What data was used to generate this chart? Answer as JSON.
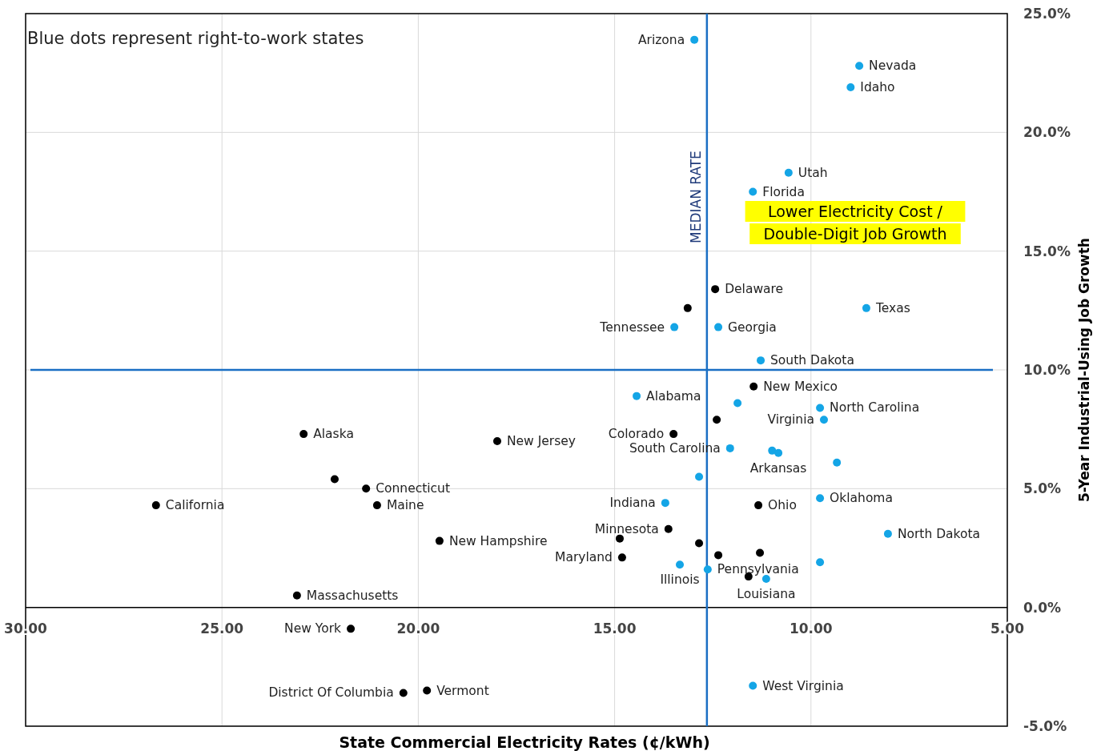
{
  "chart_data": {
    "type": "scatter",
    "xlabel": "State Commercial Electricity Rates (¢/kWh)",
    "ylabel": "5-Year Industrial-Using Job Growth",
    "xlim": [
      30,
      5
    ],
    "xticks": [
      {
        "value": 30,
        "label": "30.00"
      },
      {
        "value": 25,
        "label": "25.00"
      },
      {
        "value": 20,
        "label": "20.00"
      },
      {
        "value": 15,
        "label": "15.00"
      },
      {
        "value": 10,
        "label": "10.00"
      },
      {
        "value": 5,
        "label": "5.00"
      }
    ],
    "ylim": [
      -5,
      25
    ],
    "yticks": [
      {
        "value": -5,
        "label": "-5.0%"
      },
      {
        "value": 0,
        "label": "0.0%"
      },
      {
        "value": 5,
        "label": "5.0%"
      },
      {
        "value": 10,
        "label": "10.0%"
      },
      {
        "value": 15,
        "label": "15.0%"
      },
      {
        "value": 20,
        "label": "20.0%"
      },
      {
        "value": 25,
        "label": "25.0%"
      }
    ],
    "grid": true,
    "marker": "circle",
    "series": [
      {
        "color": "#14a5e6",
        "x": [
          12.97,
          8.77,
          8.99,
          10.57,
          11.48,
          8.59,
          13.48,
          12.36,
          11.28,
          14.44,
          11.87,
          9.77,
          9.67,
          12.06,
          10.99,
          10.83,
          9.34,
          12.85,
          13.71,
          9.77,
          8.04,
          13.34,
          9.77,
          12.63,
          11.14,
          11.48
        ],
        "values": [
          23.9,
          22.8,
          21.9,
          18.3,
          17.5,
          12.6,
          11.8,
          11.8,
          10.4,
          8.9,
          8.6,
          8.4,
          7.9,
          6.7,
          6.6,
          6.5,
          6.1,
          5.5,
          4.4,
          4.6,
          3.1,
          1.8,
          1.9,
          1.6,
          1.2,
          -3.3
        ]
      },
      {
        "color": "#000000",
        "x": [
          12.44,
          13.14,
          11.46,
          12.4,
          22.92,
          13.5,
          17.99,
          22.13,
          21.33,
          26.68,
          21.05,
          11.34,
          13.63,
          14.87,
          19.46,
          12.85,
          12.36,
          11.3,
          14.81,
          11.59,
          23.09,
          21.72,
          19.78,
          20.38
        ],
        "values": [
          13.4,
          12.6,
          9.3,
          7.9,
          7.3,
          7.3,
          7.0,
          5.4,
          5.0,
          4.3,
          4.3,
          4.3,
          3.3,
          2.9,
          2.8,
          2.7,
          2.2,
          2.3,
          2.1,
          1.3,
          0.5,
          -0.9,
          -3.5,
          -3.6
        ]
      }
    ],
    "ref_lines": [
      {
        "axis": "x",
        "value": 12.65,
        "label": "MEDIAN RATE",
        "color": "#1a6fc4"
      },
      {
        "axis": "y",
        "value": 10,
        "color": "#1a6fc4"
      }
    ],
    "annotations": [
      "Blue dots represent right-to-work states",
      "Lower Electricity Cost /\nDouble-Digit Job Growth",
      {
        "text": "Arizona",
        "x": 12.97,
        "y": 23.9
      },
      {
        "text": "Nevada",
        "x": 8.77,
        "y": 22.8
      },
      {
        "text": "Idaho",
        "x": 8.99,
        "y": 21.9
      },
      {
        "text": "Utah",
        "x": 10.57,
        "y": 18.3
      },
      {
        "text": "Florida",
        "x": 11.48,
        "y": 17.5
      },
      {
        "text": "Delaware",
        "x": 12.44,
        "y": 13.4
      },
      {
        "text": "Texas",
        "x": 8.59,
        "y": 12.6
      },
      {
        "text": "Georgia",
        "x": 12.36,
        "y": 11.8
      },
      {
        "text": "Tennessee",
        "x": 13.48,
        "y": 11.8
      },
      {
        "text": "South Dakota",
        "x": 11.28,
        "y": 10.4
      },
      {
        "text": "New Mexico",
        "x": 11.46,
        "y": 9.3
      },
      {
        "text": "Alabama",
        "x": 14.44,
        "y": 8.9
      },
      {
        "text": "North Carolina",
        "x": 9.77,
        "y": 8.4
      },
      {
        "text": "Virginia",
        "x": 9.67,
        "y": 7.9
      },
      {
        "text": "Alaska",
        "x": 22.92,
        "y": 7.3
      },
      {
        "text": "Colorado",
        "x": 13.5,
        "y": 7.3
      },
      {
        "text": "New Jersey",
        "x": 17.99,
        "y": 7.0
      },
      {
        "text": "South Carolina",
        "x": 12.06,
        "y": 6.7
      },
      {
        "text": "Arkansas",
        "x": 10.83,
        "y": 6.5
      },
      {
        "text": "Connecticut",
        "x": 21.33,
        "y": 5.0
      },
      {
        "text": "California",
        "x": 26.68,
        "y": 4.3
      },
      {
        "text": "Maine",
        "x": 21.05,
        "y": 4.3
      },
      {
        "text": "Indiana",
        "x": 13.71,
        "y": 4.4
      },
      {
        "text": "Ohio",
        "x": 11.34,
        "y": 4.3
      },
      {
        "text": "Oklahoma",
        "x": 9.77,
        "y": 4.6
      },
      {
        "text": "Minnesota",
        "x": 13.63,
        "y": 3.3
      },
      {
        "text": "North Dakota",
        "x": 8.04,
        "y": 3.1
      },
      {
        "text": "New Hampshire",
        "x": 19.46,
        "y": 2.8
      },
      {
        "text": "Illinois",
        "x": 13.34,
        "y": 1.8
      },
      {
        "text": "Pennsylvania",
        "x": 12.63,
        "y": 1.6
      },
      {
        "text": "Maryland",
        "x": 14.81,
        "y": 2.1
      },
      {
        "text": "Louisiana",
        "x": 11.14,
        "y": 1.2
      },
      {
        "text": "Massachusetts",
        "x": 23.09,
        "y": 0.5
      },
      {
        "text": "New York",
        "x": 21.72,
        "y": -0.9
      },
      {
        "text": "Vermont",
        "x": 19.78,
        "y": -3.5
      },
      {
        "text": "District Of Columbia",
        "x": 20.38,
        "y": -3.6
      },
      {
        "text": "West Virginia",
        "x": 11.48,
        "y": -3.3
      }
    ]
  }
}
